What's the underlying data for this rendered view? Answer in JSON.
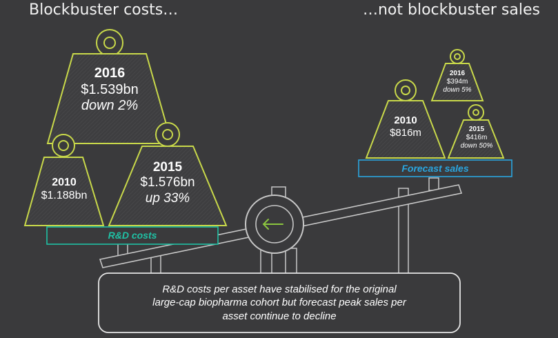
{
  "headings": {
    "left": "Blockbuster costs…",
    "right": "…not blockbuster sales"
  },
  "weights_rd": [
    {
      "year": "2016",
      "value": "$1.539bn",
      "change": "down 2%"
    },
    {
      "year": "2010",
      "value": "$1.188bn",
      "change": ""
    },
    {
      "year": "2015",
      "value": "$1.576bn",
      "change": "up 33%"
    }
  ],
  "weights_sales": [
    {
      "year": "2010",
      "value": "$816m",
      "change": ""
    },
    {
      "year": "2016",
      "value": "$394m",
      "change": "down 5%"
    },
    {
      "year": "2015",
      "value": "$416m",
      "change": "down 50%"
    }
  ],
  "labels": {
    "rd_costs": "R&D costs",
    "forecast_sales": "Forecast sales"
  },
  "caption": "R&D costs per asset have stabilised for the original\nlarge-cap biopharma cohort but forecast peak sales per\nasset continue to decline",
  "colors": {
    "background": "#3a3a3c",
    "weight_outline": "#c9d94a",
    "rd_accent": "#1fc1a5",
    "sales_accent": "#2aa6e0",
    "arrow": "#8cc63f",
    "structure": "#c8c8c8"
  },
  "icons": {
    "pivot_arrow": "arrow-left-icon"
  }
}
